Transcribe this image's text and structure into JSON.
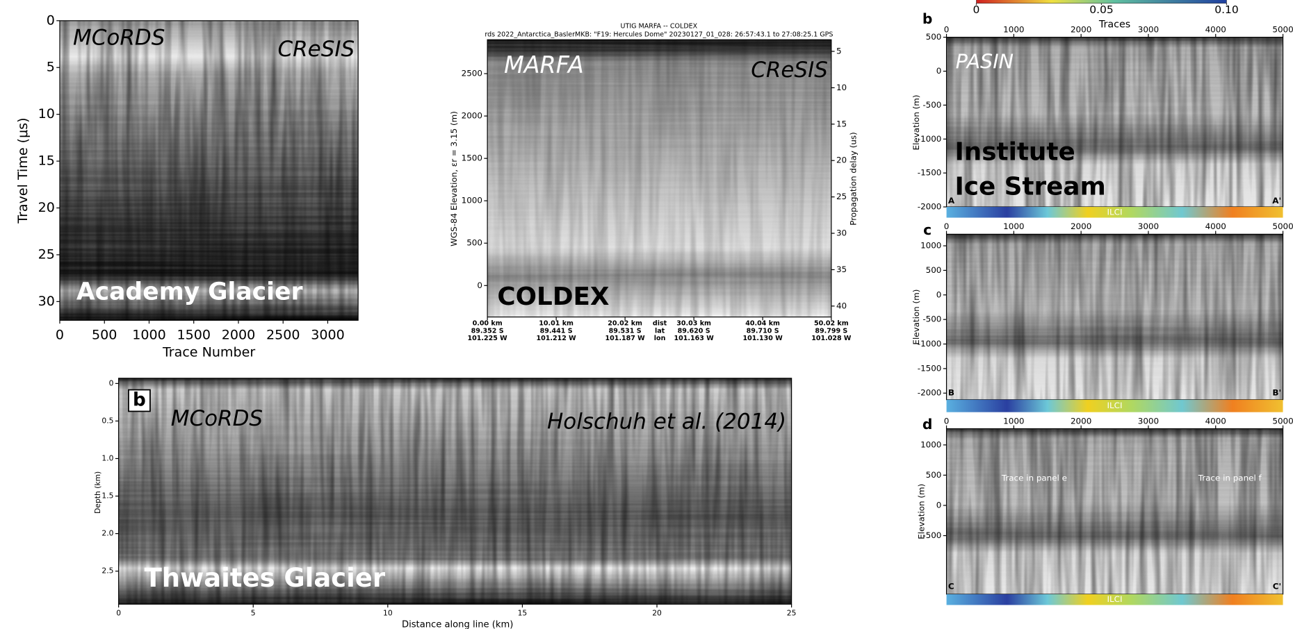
{
  "chart_data": [
    {
      "type": "radargram",
      "ylabel": "Travel Time (μs)",
      "xlabel": "Trace Number",
      "xlim": [
        0,
        3340
      ],
      "ylim": [
        0,
        32
      ],
      "y_inverted": true,
      "xticks": [
        0,
        500,
        1000,
        1500,
        2000,
        2500,
        3000
      ],
      "yticks": [
        0,
        5,
        10,
        15,
        20,
        25,
        30
      ],
      "annotations": [
        "MCoRDS",
        "CReSIS",
        "Academy Glacier"
      ]
    },
    {
      "type": "radargram",
      "title": "UTIG MARFA -- COLDEX",
      "subtitle": "rds 2022_Antarctica_BaslerMKB: \"F19: Hercules Dome\"  20230127_01_028: 26:57:43.1 to 27:08:25.1 GPS",
      "ylabel": "WGS-84 Elevation, εr = 3.15 (m)",
      "y2label": "Propagation delay (us)",
      "xlim": [
        0,
        50.02
      ],
      "ylim": [
        -371,
        2900
      ],
      "y2lim": [
        3.4,
        41.5
      ],
      "y2_inverted": true,
      "xticks": [
        {
          "value": 0,
          "label": "0.00 km"
        },
        {
          "value": 10.01,
          "label": "10.01 km"
        },
        {
          "value": 20.02,
          "label": "20.02 km"
        },
        {
          "value": 30.03,
          "label": "30.03 km"
        },
        {
          "value": 40.04,
          "label": "40.04 km"
        },
        {
          "value": 50.02,
          "label": "50.02 km"
        }
      ],
      "xtick_lat": [
        "89.352 S",
        "89.441 S",
        "89.531 S",
        "89.620 S",
        "89.710 S",
        "89.799 S"
      ],
      "xtick_lon": [
        "101.225 W",
        "101.212 W",
        "101.187 W",
        "101.163 W",
        "101.130 W",
        "101.028 W"
      ],
      "xtick_row_names": [
        "dist",
        "lat",
        "lon"
      ],
      "yticks": [
        0,
        500,
        1000,
        1500,
        2000,
        2500
      ],
      "y2ticks": [
        5,
        10,
        15,
        20,
        25,
        30,
        35,
        40
      ],
      "annotations": [
        "MARFA",
        "CReSIS",
        "COLDEX"
      ]
    },
    {
      "type": "radargram",
      "panel_label": "b",
      "ylabel": "Depth (km)",
      "xlabel": "Distance along line (km)",
      "xlim": [
        0,
        25
      ],
      "ylim": [
        -0.07,
        2.94
      ],
      "y_inverted": true,
      "xticks": [
        0,
        5,
        10,
        15,
        20,
        25
      ],
      "yticks": [
        0,
        0.5,
        {
          "value": 1,
          "label": "1.0"
        },
        1.5,
        {
          "value": 2,
          "label": "2.0"
        },
        2.5
      ],
      "annotations": [
        "MCoRDS",
        "Holschuh et al. (2014)",
        "Thwaites Glacier"
      ]
    },
    {
      "type": "colorbar",
      "xlim": [
        0,
        0.1
      ],
      "xticks": [
        0,
        0.05,
        {
          "value": 0.1,
          "label": "0.10"
        }
      ]
    },
    {
      "type": "radargram",
      "panel_label": "b",
      "xlabel": "Traces",
      "ylabel": "Elevation (m)",
      "colorbar_label": "ILCI",
      "xlim": [
        0,
        5000
      ],
      "ylim": [
        -2000,
        500
      ],
      "xticks": [
        0,
        1000,
        2000,
        3000,
        4000,
        5000
      ],
      "yticks": [
        500,
        0,
        -500,
        -1000,
        -1500,
        -2000
      ],
      "annotations": [
        "PASIN",
        "Institute",
        "Ice Stream",
        "A",
        "A'"
      ]
    },
    {
      "type": "radargram",
      "panel_label": "c",
      "ylabel": "Elevation (m)",
      "colorbar_label": "ILCI",
      "xlim": [
        0,
        5000
      ],
      "ylim": [
        -2135,
        1236
      ],
      "xticks": [
        0,
        1000,
        2000,
        3000,
        4000,
        5000
      ],
      "yticks": [
        1000,
        500,
        0,
        -500,
        -1000,
        -1500,
        -2000
      ],
      "annotations": [
        "B",
        "B'"
      ]
    },
    {
      "type": "radargram",
      "panel_label": "d",
      "ylabel": "Elevation (m)",
      "colorbar_label": "ILCI",
      "xlim": [
        0,
        5000
      ],
      "ylim": [
        -1469,
        1268
      ],
      "xticks": [
        0,
        1000,
        2000,
        3000,
        4000,
        5000
      ],
      "yticks": [
        1000,
        500,
        0,
        -500
      ],
      "annotations": [
        "C",
        "C'",
        "Trace in panel e",
        "Trace in panel f"
      ]
    }
  ]
}
